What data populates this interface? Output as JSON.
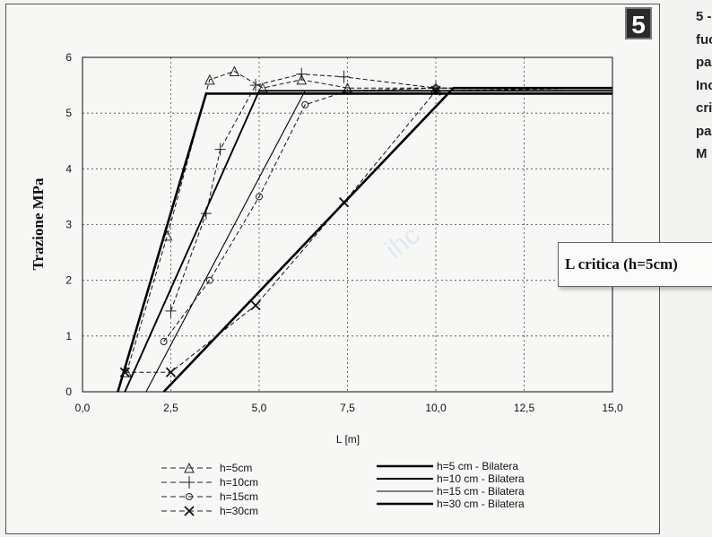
{
  "figure_number": "5",
  "side_text_lines": [
    "5 -",
    "fuo",
    "pa",
    "Inc",
    "cri",
    "pa",
    "M"
  ],
  "callout": "L critica (h=5cm)",
  "watermark": "ihc",
  "colors": {
    "background": "#f7f7f5",
    "grid": "#444444",
    "curve": "#111111",
    "bilatera": "#000000"
  },
  "chart_data": {
    "type": "line",
    "xlabel": "L [m]",
    "ylabel": "Trazione MPa",
    "xlim": [
      0,
      15
    ],
    "ylim": [
      0,
      6
    ],
    "x_ticks": [
      "0,0",
      "2,5",
      "5,0",
      "7,5",
      "10,0",
      "12,5",
      "15,0"
    ],
    "y_ticks": [
      "0",
      "1",
      "2",
      "3",
      "4",
      "5",
      "6"
    ],
    "grid": true,
    "legend_position": "bottom",
    "series": [
      {
        "name": "h=5cm",
        "marker": "triangle",
        "style": "dash",
        "x": [
          1.25,
          2.4,
          3.6,
          4.3,
          5.1,
          6.2,
          7.5,
          10.0,
          15.0
        ],
        "y": [
          0.35,
          2.8,
          5.6,
          5.75,
          5.45,
          5.6,
          5.45,
          5.45,
          5.45
        ]
      },
      {
        "name": "h=10cm",
        "marker": "plus",
        "style": "dash",
        "x": [
          2.5,
          3.5,
          3.9,
          4.9,
          6.2,
          7.4,
          10.0,
          15.0
        ],
        "y": [
          1.45,
          3.2,
          4.35,
          5.5,
          5.7,
          5.65,
          5.45,
          5.45
        ]
      },
      {
        "name": "h=15cm",
        "marker": "circle",
        "style": "dash",
        "x": [
          2.3,
          3.6,
          5.0,
          6.3,
          7.5,
          10.0,
          15.0
        ],
        "y": [
          0.9,
          2.0,
          3.5,
          5.15,
          5.4,
          5.45,
          5.45
        ]
      },
      {
        "name": "h=30cm",
        "marker": "x",
        "style": "dash",
        "x": [
          1.2,
          2.5,
          4.9,
          7.4,
          10.0,
          15.0
        ],
        "y": [
          0.35,
          0.35,
          1.55,
          3.4,
          5.4,
          5.45
        ]
      },
      {
        "name": "h=5 cm - Bilatera",
        "marker": "none",
        "style": "solid",
        "weight": "thick",
        "x": [
          1.0,
          3.5,
          15.0
        ],
        "y": [
          0.0,
          5.35,
          5.35
        ]
      },
      {
        "name": "h=10 cm - Bilatera",
        "marker": "none",
        "style": "solid",
        "weight": "medium",
        "x": [
          1.2,
          5.0,
          15.0
        ],
        "y": [
          0.0,
          5.4,
          5.4
        ]
      },
      {
        "name": "h=15 cm - Bilatera",
        "marker": "none",
        "style": "solid",
        "weight": "thin",
        "x": [
          1.8,
          6.3,
          15.0
        ],
        "y": [
          0.0,
          5.4,
          5.4
        ]
      },
      {
        "name": "h=30 cm - Bilatera",
        "marker": "none",
        "style": "solid",
        "weight": "thick",
        "x": [
          2.3,
          10.5,
          15.0
        ],
        "y": [
          0.0,
          5.45,
          5.45
        ]
      }
    ]
  }
}
